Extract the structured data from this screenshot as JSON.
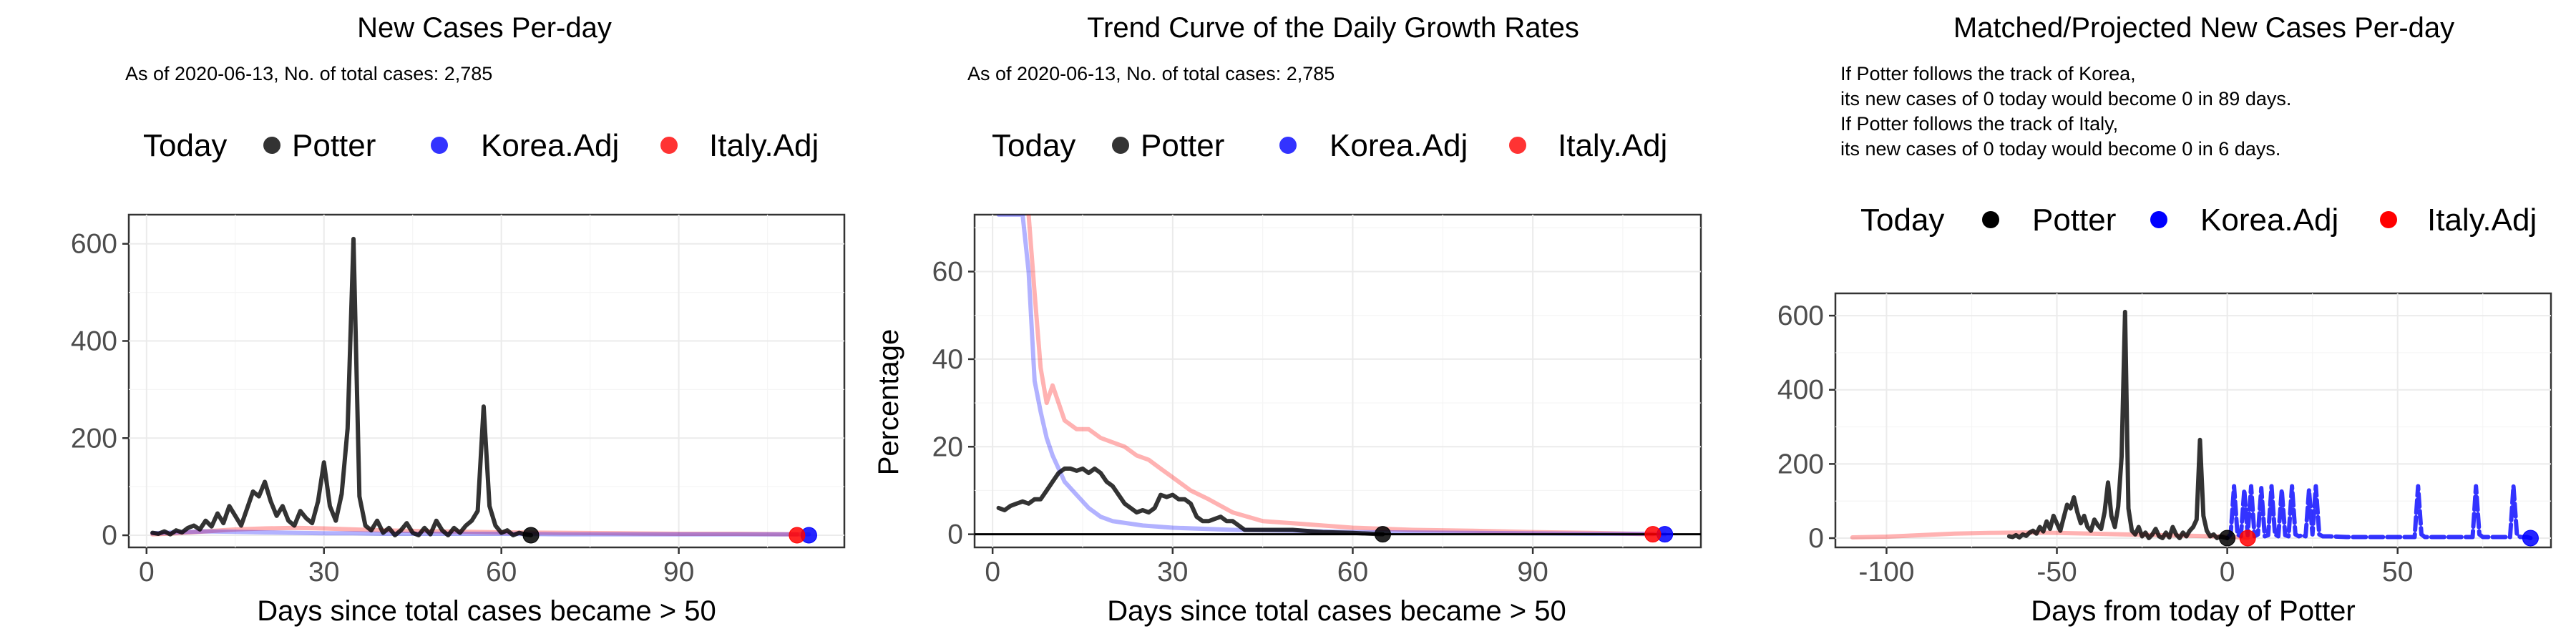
{
  "chart_data": [
    {
      "type": "line",
      "title": "New Cases Per-day",
      "subtitle": "As of 2020-06-13, No. of total cases: 2,785",
      "legend_title": "Today",
      "legend_placement": "top",
      "xlabel": "Days since total cases became > 50",
      "ylabel": "",
      "xlim": [
        -3,
        118
      ],
      "ylim": [
        -25,
        660
      ],
      "xticks": [
        0,
        30,
        60,
        90
      ],
      "yticks": [
        0,
        200,
        400,
        600
      ],
      "grid": true,
      "series": [
        {
          "name": "Potter",
          "color": "#000000",
          "alpha": 0.8,
          "x": [
            1,
            2,
            3,
            4,
            5,
            6,
            7,
            8,
            9,
            10,
            11,
            12,
            13,
            14,
            15,
            16,
            17,
            18,
            19,
            20,
            21,
            22,
            23,
            24,
            25,
            26,
            27,
            28,
            29,
            30,
            31,
            32,
            33,
            34,
            35,
            36,
            37,
            38,
            39,
            40,
            41,
            42,
            43,
            44,
            45,
            46,
            47,
            48,
            49,
            50,
            51,
            52,
            53,
            54,
            55,
            56,
            57,
            58,
            59,
            60,
            61,
            62,
            63,
            64,
            65
          ],
          "y": [
            5,
            3,
            8,
            2,
            10,
            6,
            15,
            20,
            12,
            30,
            18,
            45,
            25,
            60,
            40,
            20,
            55,
            90,
            80,
            110,
            70,
            40,
            60,
            30,
            20,
            50,
            35,
            25,
            70,
            150,
            60,
            30,
            85,
            220,
            610,
            80,
            20,
            10,
            30,
            5,
            15,
            0,
            10,
            25,
            5,
            0,
            15,
            2,
            30,
            10,
            0,
            15,
            5,
            20,
            30,
            50,
            265,
            60,
            20,
            5,
            10,
            0,
            5,
            2,
            0
          ]
        },
        {
          "name": "Korea.Adj",
          "color": "#0000ff",
          "alpha": 0.3,
          "x": [
            1,
            5,
            10,
            15,
            20,
            25,
            30,
            35,
            40,
            50,
            60,
            70,
            80,
            90,
            100,
            110,
            112
          ],
          "y": [
            4,
            6,
            8,
            7,
            6,
            5,
            4,
            4,
            3,
            3,
            3,
            2,
            2,
            2,
            2,
            2,
            2
          ]
        },
        {
          "name": "Italy.Adj",
          "color": "#ff0000",
          "alpha": 0.3,
          "x": [
            1,
            5,
            10,
            15,
            20,
            25,
            30,
            35,
            40,
            50,
            60,
            70,
            80,
            90,
            100,
            110
          ],
          "y": [
            2,
            4,
            8,
            12,
            14,
            15,
            14,
            12,
            10,
            8,
            6,
            5,
            4,
            3,
            3,
            2
          ]
        }
      ],
      "today_points": [
        {
          "name": "Potter",
          "x": 65,
          "y": 0,
          "color": "#000000"
        },
        {
          "name": "Korea.Adj",
          "x": 112,
          "y": 0,
          "color": "#0000ff"
        },
        {
          "name": "Italy.Adj",
          "x": 110,
          "y": 0,
          "color": "#ff0000"
        }
      ]
    },
    {
      "type": "line",
      "title": "Trend Curve of the Daily Growth Rates",
      "subtitle": "As of 2020-06-13, No. of total cases: 2,785",
      "legend_title": "Today",
      "legend_placement": "top",
      "xlabel": "Days since total cases became > 50",
      "ylabel": "Percentage",
      "xlim": [
        -3,
        118
      ],
      "ylim": [
        -3,
        73
      ],
      "xticks": [
        0,
        30,
        60,
        90
      ],
      "yticks": [
        0,
        20,
        40,
        60
      ],
      "grid": true,
      "hline_y": 0,
      "series": [
        {
          "name": "Potter",
          "color": "#000000",
          "alpha": 0.8,
          "x": [
            1,
            2,
            3,
            4,
            5,
            6,
            7,
            8,
            9,
            10,
            11,
            12,
            13,
            14,
            15,
            16,
            17,
            18,
            19,
            20,
            21,
            22,
            23,
            24,
            25,
            26,
            27,
            28,
            29,
            30,
            31,
            32,
            33,
            34,
            35,
            36,
            37,
            38,
            39,
            40,
            41,
            42,
            45,
            50,
            55,
            60,
            65
          ],
          "y": [
            6,
            5.5,
            6.5,
            7,
            7.5,
            7,
            8,
            8,
            10,
            12,
            14,
            15,
            15,
            14.5,
            15,
            14,
            15,
            14,
            12,
            11,
            9,
            7,
            6,
            5,
            5.5,
            5,
            6,
            9,
            8.5,
            9,
            8,
            8,
            7,
            4,
            3,
            3,
            3.5,
            4,
            3,
            3,
            2,
            1,
            1,
            1,
            0.5,
            0.3,
            0
          ]
        },
        {
          "name": "Korea.Adj",
          "color": "#0000ff",
          "alpha": 0.3,
          "x": [
            1,
            2,
            3,
            4,
            5,
            6,
            7,
            8,
            9,
            10,
            12,
            14,
            16,
            18,
            20,
            25,
            30,
            40,
            50,
            60,
            70,
            80,
            90,
            100,
            110,
            112
          ],
          "y": [
            73,
            73,
            73,
            73,
            73,
            60,
            35,
            28,
            22,
            18,
            12,
            9,
            6,
            4,
            3,
            2,
            1.5,
            1,
            0.8,
            0.5,
            0.4,
            0.3,
            0.2,
            0.1,
            0.1,
            0
          ]
        },
        {
          "name": "Italy.Adj",
          "color": "#ff0000",
          "alpha": 0.3,
          "x": [
            6,
            7,
            8,
            9,
            10,
            11,
            12,
            14,
            16,
            18,
            20,
            22,
            24,
            26,
            28,
            30,
            33,
            36,
            40,
            45,
            50,
            55,
            60,
            70,
            80,
            90,
            100,
            110
          ],
          "y": [
            73,
            55,
            38,
            30,
            34,
            30,
            26,
            24,
            24,
            22,
            21,
            20,
            18,
            17,
            15,
            13,
            10,
            8,
            5,
            3,
            2.5,
            2,
            1.5,
            1,
            0.8,
            0.5,
            0.3,
            0
          ]
        }
      ],
      "today_points": [
        {
          "name": "Potter",
          "x": 65,
          "y": 0,
          "color": "#000000"
        },
        {
          "name": "Korea.Adj",
          "x": 112,
          "y": 0,
          "color": "#0000ff"
        },
        {
          "name": "Italy.Adj",
          "x": 110,
          "y": 0,
          "color": "#ff0000"
        }
      ]
    },
    {
      "type": "line",
      "title": "Matched/Projected New Cases Per-day",
      "annotations": [
        "If Potter follows the track of Korea,",
        "its new cases of 0 today would become 0 in 89 days.",
        "If Potter follows the track of Italy,",
        "its new cases of 0 today would become 0 in 6 days."
      ],
      "legend_title": "Today",
      "legend_placement": "top",
      "xlabel": "Days from today of Potter",
      "ylabel": "",
      "xlim": [
        -115,
        95
      ],
      "ylim": [
        -25,
        660
      ],
      "xticks": [
        -100,
        -50,
        0,
        50
      ],
      "yticks": [
        0,
        200,
        400,
        600
      ],
      "grid": true,
      "series": [
        {
          "name": "Potter",
          "color": "#000000",
          "alpha": 0.8,
          "x": [
            -64,
            -63,
            -62,
            -61,
            -60,
            -59,
            -58,
            -57,
            -56,
            -55,
            -54,
            -53,
            -52,
            -51,
            -50,
            -49,
            -48,
            -47,
            -46,
            -45,
            -44,
            -43,
            -42,
            -41,
            -40,
            -39,
            -38,
            -37,
            -36,
            -35,
            -34,
            -33,
            -32,
            -31,
            -30,
            -29,
            -28,
            -27,
            -26,
            -25,
            -24,
            -23,
            -22,
            -21,
            -20,
            -19,
            -18,
            -17,
            -16,
            -15,
            -14,
            -13,
            -12,
            -11,
            -10,
            -9,
            -8,
            -7,
            -6,
            -5,
            -4,
            -3,
            -2,
            -1,
            0
          ],
          "y": [
            5,
            3,
            8,
            2,
            10,
            6,
            15,
            20,
            12,
            30,
            18,
            45,
            25,
            60,
            40,
            20,
            55,
            90,
            80,
            110,
            70,
            40,
            60,
            30,
            20,
            50,
            35,
            25,
            70,
            150,
            60,
            30,
            85,
            220,
            610,
            80,
            20,
            10,
            30,
            5,
            15,
            0,
            10,
            25,
            5,
            0,
            15,
            2,
            30,
            10,
            0,
            15,
            5,
            20,
            30,
            50,
            265,
            60,
            20,
            5,
            10,
            0,
            5,
            2,
            0
          ]
        },
        {
          "name": "Korea.Adj",
          "color": "#0000ff",
          "alpha": 0.8,
          "style": "dashed",
          "x": [
            0,
            1,
            2,
            3,
            4,
            5,
            6,
            7,
            8,
            9,
            10,
            11,
            12,
            13,
            14,
            15,
            16,
            17,
            18,
            19,
            20,
            21,
            22,
            23,
            24,
            25,
            26,
            27,
            28,
            30,
            35,
            40,
            45,
            50,
            55,
            56,
            57,
            58,
            60,
            65,
            70,
            72,
            73,
            74,
            75,
            76,
            78,
            80,
            83,
            84,
            85,
            86,
            87,
            88,
            89
          ],
          "y": [
            0,
            10,
            140,
            10,
            5,
            130,
            8,
            140,
            5,
            10,
            135,
            5,
            8,
            140,
            10,
            5,
            130,
            8,
            5,
            140,
            10,
            5,
            8,
            5,
            130,
            10,
            140,
            10,
            5,
            5,
            3,
            3,
            3,
            3,
            3,
            140,
            10,
            3,
            3,
            3,
            3,
            3,
            140,
            10,
            3,
            3,
            3,
            3,
            3,
            140,
            10,
            3,
            3,
            3,
            0
          ]
        },
        {
          "name": "Italy.Adj",
          "color": "#ff0000",
          "alpha": 0.3,
          "x": [
            -110,
            -100,
            -90,
            -80,
            -70,
            -60,
            -50,
            -40,
            -30,
            -20,
            -10,
            0,
            3,
            6
          ],
          "y": [
            2,
            4,
            8,
            12,
            14,
            15,
            14,
            12,
            10,
            8,
            6,
            4,
            2,
            0
          ]
        }
      ],
      "today_points": [
        {
          "name": "Potter",
          "x": 0,
          "y": 0,
          "color": "#000000"
        },
        {
          "name": "Korea.Adj",
          "x": 89,
          "y": 0,
          "color": "#0000ff"
        },
        {
          "name": "Italy.Adj",
          "x": 6,
          "y": 0,
          "color": "#ff0000"
        }
      ]
    }
  ]
}
